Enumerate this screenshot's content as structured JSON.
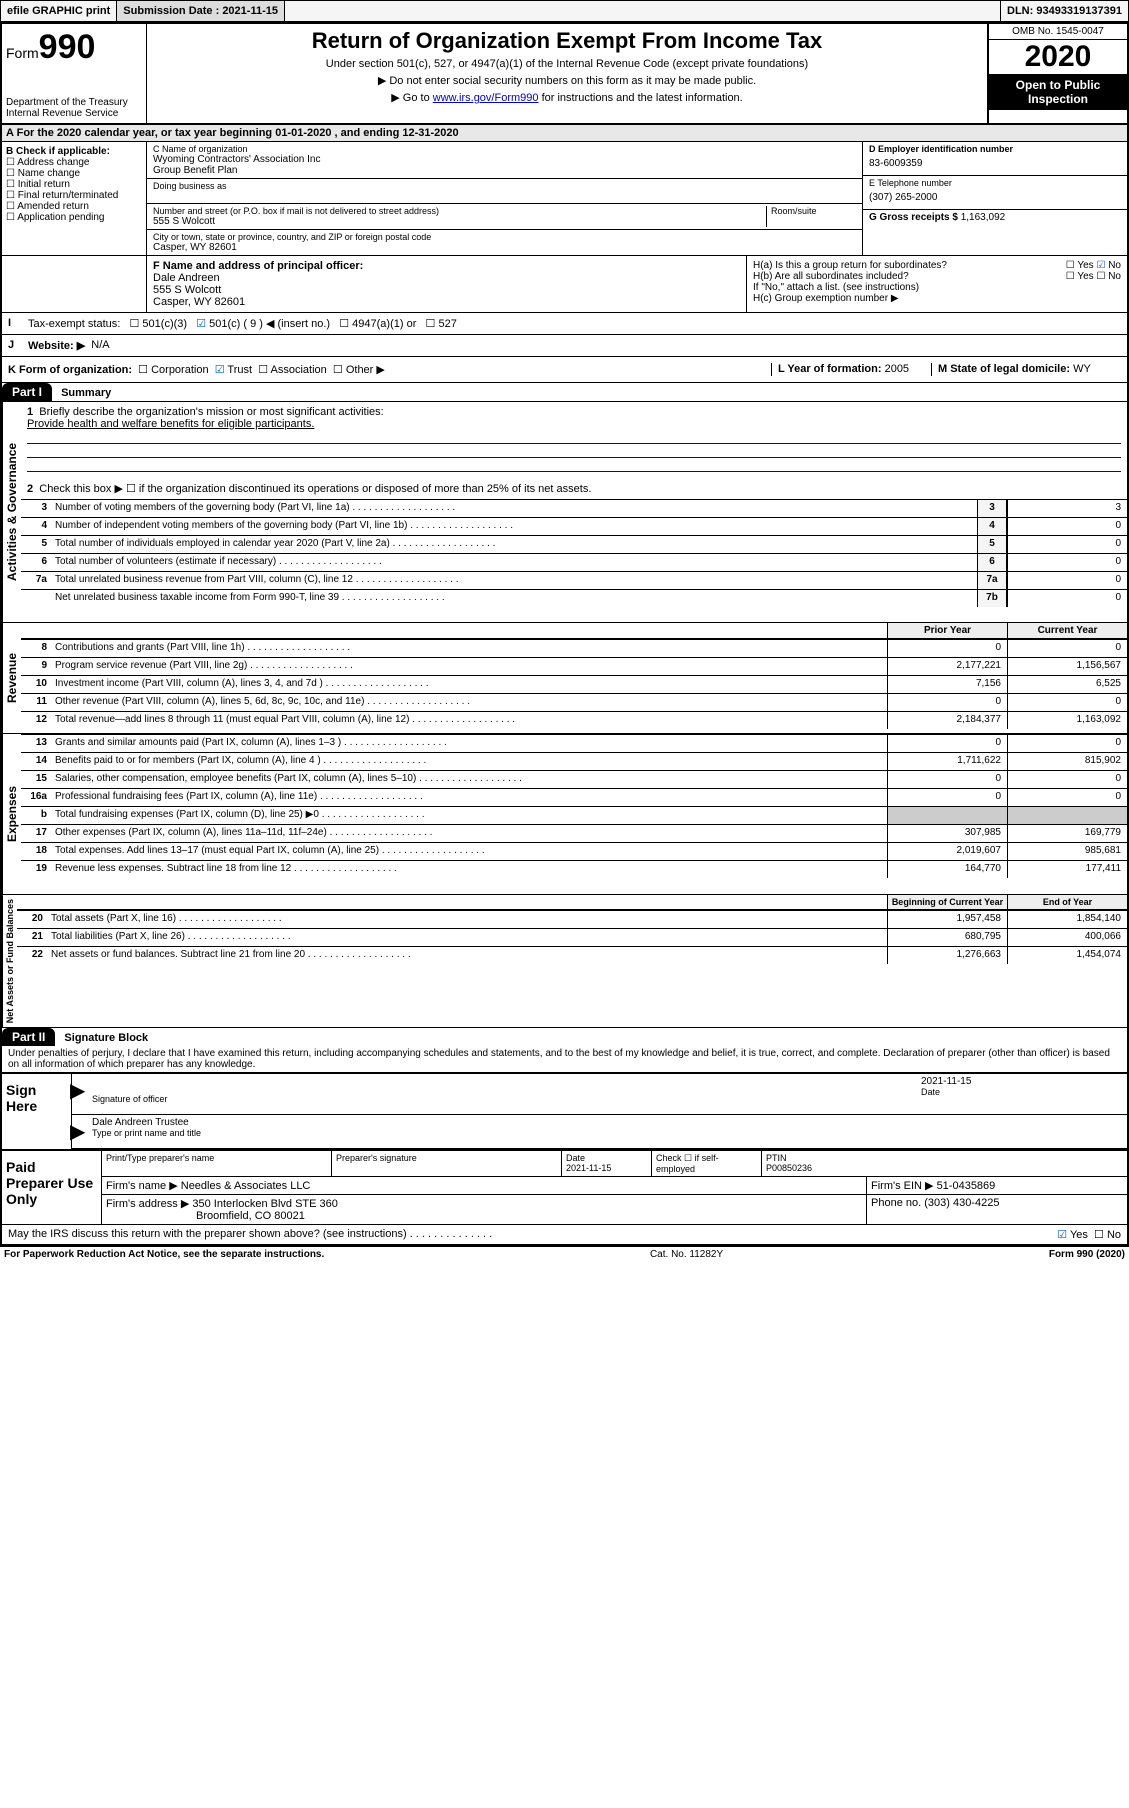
{
  "topbar": {
    "efile": "efile GRAPHIC print",
    "submission_label": "Submission Date : 2021-11-15",
    "dln": "DLN: 93493319137391"
  },
  "header": {
    "form_prefix": "Form",
    "form_no": "990",
    "dept": "Department of the Treasury\nInternal Revenue Service",
    "title": "Return of Organization Exempt From Income Tax",
    "sub1": "Under section 501(c), 527, or 4947(a)(1) of the Internal Revenue Code (except private foundations)",
    "sub2": "Do not enter social security numbers on this form as it may be made public.",
    "sub3_pre": "Go to ",
    "sub3_link": "www.irs.gov/Form990",
    "sub3_post": " for instructions and the latest information.",
    "omb": "OMB No. 1545-0047",
    "year": "2020",
    "open": "Open to Public Inspection"
  },
  "periodA": "For the 2020 calendar year, or tax year beginning 01-01-2020   , and ending 12-31-2020",
  "B": {
    "label": "B Check if applicable:",
    "opts": [
      "Address change",
      "Name change",
      "Initial return",
      "Final return/terminated",
      "Amended return",
      "Application pending"
    ]
  },
  "C": {
    "name_label": "C Name of organization",
    "name": "Wyoming Contractors' Association Inc\nGroup Benefit Plan",
    "dba_label": "Doing business as",
    "addr_label": "Number and street (or P.O. box if mail is not delivered to street address)",
    "room_label": "Room/suite",
    "addr": "555 S Wolcott",
    "city_label": "City or town, state or province, country, and ZIP or foreign postal code",
    "city": "Casper, WY  82601"
  },
  "D": {
    "label": "D Employer identification number",
    "val": "83-6009359"
  },
  "E": {
    "label": "E Telephone number",
    "val": "(307) 265-2000"
  },
  "G": {
    "label": "G Gross receipts $",
    "val": "1,163,092"
  },
  "F": {
    "label": "F  Name and address of principal officer:",
    "name": "Dale Andreen",
    "addr": "555 S Wolcott",
    "city": "Casper, WY  82601"
  },
  "H": {
    "a": "H(a)  Is this a group return for subordinates?",
    "b": "H(b)  Are all subordinates included?",
    "b_note": "If \"No,\" attach a list. (see instructions)",
    "c": "H(c)  Group exemption number ▶",
    "yes": "Yes",
    "no": "No"
  },
  "I": {
    "label": "Tax-exempt status:",
    "opts": [
      "501(c)(3)",
      "501(c) ( 9 ) ◀ (insert no.)",
      "4947(a)(1) or",
      "527"
    ],
    "checked_index": 1
  },
  "J": {
    "label": "Website: ▶",
    "val": "N/A"
  },
  "K": {
    "label": "K Form of organization:",
    "opts": [
      "Corporation",
      "Trust",
      "Association",
      "Other ▶"
    ],
    "checked_index": 1
  },
  "L": {
    "label": "L Year of formation:",
    "val": "2005"
  },
  "M": {
    "label": "M State of legal domicile:",
    "val": "WY"
  },
  "part1": {
    "bar": "Part I",
    "title": "Summary"
  },
  "q1": {
    "label": "Briefly describe the organization's mission or most significant activities:",
    "text": "Provide health and welfare benefits for eligible participants."
  },
  "q2": "Check this box ▶ ☐  if the organization discontinued its operations or disposed of more than 25% of its net assets.",
  "lines_single": [
    {
      "n": "3",
      "d": "Number of voting members of the governing body (Part VI, line 1a)",
      "k": "3",
      "v": "3"
    },
    {
      "n": "4",
      "d": "Number of independent voting members of the governing body (Part VI, line 1b)",
      "k": "4",
      "v": "0"
    },
    {
      "n": "5",
      "d": "Total number of individuals employed in calendar year 2020 (Part V, line 2a)",
      "k": "5",
      "v": "0"
    },
    {
      "n": "6",
      "d": "Total number of volunteers (estimate if necessary)",
      "k": "6",
      "v": "0"
    },
    {
      "n": "7a",
      "d": "Total unrelated business revenue from Part VIII, column (C), line 12",
      "k": "7a",
      "v": "0"
    },
    {
      "n": "",
      "d": "Net unrelated business taxable income from Form 990-T, line 39",
      "k": "7b",
      "v": "0"
    }
  ],
  "col_heads": {
    "prior": "Prior Year",
    "current": "Current Year",
    "boy": "Beginning of Current Year",
    "eoy": "End of Year"
  },
  "revenue": [
    {
      "n": "8",
      "d": "Contributions and grants (Part VIII, line 1h)",
      "p": "0",
      "c": "0"
    },
    {
      "n": "9",
      "d": "Program service revenue (Part VIII, line 2g)",
      "p": "2,177,221",
      "c": "1,156,567"
    },
    {
      "n": "10",
      "d": "Investment income (Part VIII, column (A), lines 3, 4, and 7d )",
      "p": "7,156",
      "c": "6,525"
    },
    {
      "n": "11",
      "d": "Other revenue (Part VIII, column (A), lines 5, 6d, 8c, 9c, 10c, and 11e)",
      "p": "0",
      "c": "0"
    },
    {
      "n": "12",
      "d": "Total revenue—add lines 8 through 11 (must equal Part VIII, column (A), line 12)",
      "p": "2,184,377",
      "c": "1,163,092"
    }
  ],
  "expenses": [
    {
      "n": "13",
      "d": "Grants and similar amounts paid (Part IX, column (A), lines 1–3 )",
      "p": "0",
      "c": "0"
    },
    {
      "n": "14",
      "d": "Benefits paid to or for members (Part IX, column (A), line 4 )",
      "p": "1,711,622",
      "c": "815,902"
    },
    {
      "n": "15",
      "d": "Salaries, other compensation, employee benefits (Part IX, column (A), lines 5–10)",
      "p": "0",
      "c": "0"
    },
    {
      "n": "16a",
      "d": "Professional fundraising fees (Part IX, column (A), line 11e)",
      "p": "0",
      "c": "0"
    },
    {
      "n": "b",
      "d": "Total fundraising expenses (Part IX, column (D), line 25) ▶0",
      "p": "",
      "c": ""
    },
    {
      "n": "17",
      "d": "Other expenses (Part IX, column (A), lines 11a–11d, 11f–24e)",
      "p": "307,985",
      "c": "169,779"
    },
    {
      "n": "18",
      "d": "Total expenses. Add lines 13–17 (must equal Part IX, column (A), line 25)",
      "p": "2,019,607",
      "c": "985,681"
    },
    {
      "n": "19",
      "d": "Revenue less expenses. Subtract line 18 from line 12",
      "p": "164,770",
      "c": "177,411"
    }
  ],
  "net": [
    {
      "n": "20",
      "d": "Total assets (Part X, line 16)",
      "p": "1,957,458",
      "c": "1,854,140"
    },
    {
      "n": "21",
      "d": "Total liabilities (Part X, line 26)",
      "p": "680,795",
      "c": "400,066"
    },
    {
      "n": "22",
      "d": "Net assets or fund balances. Subtract line 21 from line 20",
      "p": "1,276,663",
      "c": "1,454,074"
    }
  ],
  "vert": {
    "ag": "Activities & Governance",
    "rev": "Revenue",
    "exp": "Expenses",
    "na": "Net Assets or Fund Balances"
  },
  "part2": {
    "bar": "Part II",
    "title": "Signature Block"
  },
  "perjury": "Under penalties of perjury, I declare that I have examined this return, including accompanying schedules and statements, and to the best of my knowledge and belief, it is true, correct, and complete. Declaration of preparer (other than officer) is based on all information of which preparer has any knowledge.",
  "sign": {
    "here": "Sign Here",
    "sig_of_officer": "Signature of officer",
    "date_label": "Date",
    "date": "2021-11-15",
    "name_title": "Dale Andreen  Trustee",
    "type_label": "Type or print name and title"
  },
  "paid": {
    "label": "Paid Preparer Use Only",
    "print_label": "Print/Type preparer's name",
    "prep_sig_label": "Preparer's signature",
    "date_label": "Date",
    "date": "2021-11-15",
    "check_label": "Check ☐ if self-employed",
    "ptin_label": "PTIN",
    "ptin": "P00850236",
    "firm_name_label": "Firm's name    ▶",
    "firm_name": "Needles & Associates LLC",
    "firm_ein_label": "Firm's EIN ▶",
    "firm_ein": "51-0435869",
    "firm_addr_label": "Firm's address ▶",
    "firm_addr1": "350 Interlocken Blvd STE 360",
    "firm_addr2": "Broomfield, CO  80021",
    "phone_label": "Phone no.",
    "phone": "(303) 430-4225"
  },
  "discuss": "May the IRS discuss this return with the preparer shown above? (see instructions)",
  "footer": {
    "left": "For Paperwork Reduction Act Notice, see the separate instructions.",
    "mid": "Cat. No. 11282Y",
    "right": "Form 990 (2020)"
  }
}
